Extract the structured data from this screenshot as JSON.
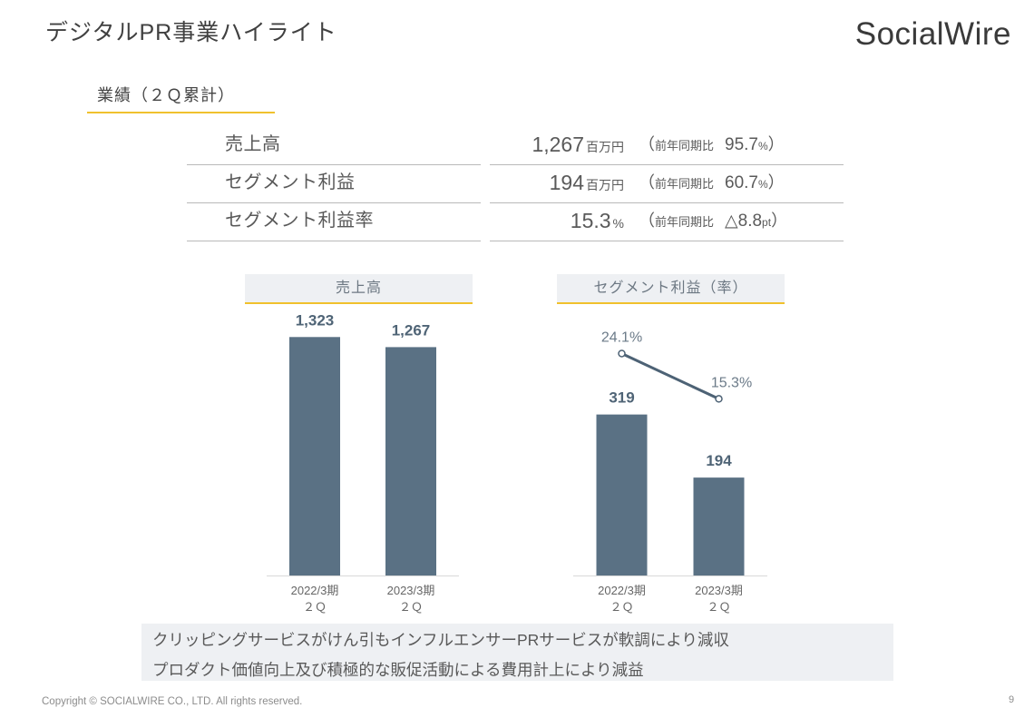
{
  "slide": {
    "title": "デジタルPR事業ハイライト",
    "logo_text": "SocialWire",
    "page_number": "9",
    "copyright": "Copyright © SOCIALWIRE CO., LTD. All rights reserved."
  },
  "section": {
    "heading": "業績（２Ｑ累計）"
  },
  "metrics": [
    {
      "label": "売上高",
      "value": "1,267",
      "unit": "百万円",
      "compare": {
        "open": "（",
        "label": "前年同期比",
        "value": "95.7",
        "unit": "%",
        "close": "）"
      }
    },
    {
      "label": "セグメント利益",
      "value": "194",
      "unit": "百万円",
      "compare": {
        "open": "（",
        "label": "前年同期比",
        "value": "60.7",
        "unit": "%",
        "close": "）"
      }
    },
    {
      "label": "セグメント利益率",
      "value": "15.3",
      "unit": "%",
      "compare": {
        "open": "（",
        "label": "前年同期比",
        "value": "△8.8",
        "unit": "pt",
        "close": "）"
      }
    }
  ],
  "notes": [
    "クリッピングサービスがけん引もインフルエンサーPRサービスが軟調により減収",
    "プロダクト価値向上及び積極的な販促活動による費用計上により減益"
  ],
  "colors": {
    "text": "#595959",
    "accent_underline": "#f0c12d",
    "panel_bg": "#eef0f3",
    "bar": "#5a7184",
    "line": "#4d6275",
    "baseline": "#d9d9d9"
  },
  "chart_data": [
    {
      "type": "bar",
      "title": "売上高",
      "categories": [
        "2022/3期\n２Ｑ",
        "2023/3期\n２Ｑ"
      ],
      "values": [
        1323,
        1267
      ],
      "ylim": [
        0,
        1400
      ],
      "grid": false
    },
    {
      "type": "bar",
      "title": "セグメント利益（率）",
      "categories": [
        "2022/3期\n２Ｑ",
        "2023/3期\n２Ｑ"
      ],
      "series": [
        {
          "type": "bar",
          "values": [
            319,
            194
          ]
        },
        {
          "type": "line",
          "values": [
            24.1,
            15.3
          ],
          "value_suffix": "%"
        }
      ],
      "ylim": [
        0,
        500
      ],
      "y2lim": [
        -19,
        30
      ],
      "grid": false
    }
  ]
}
